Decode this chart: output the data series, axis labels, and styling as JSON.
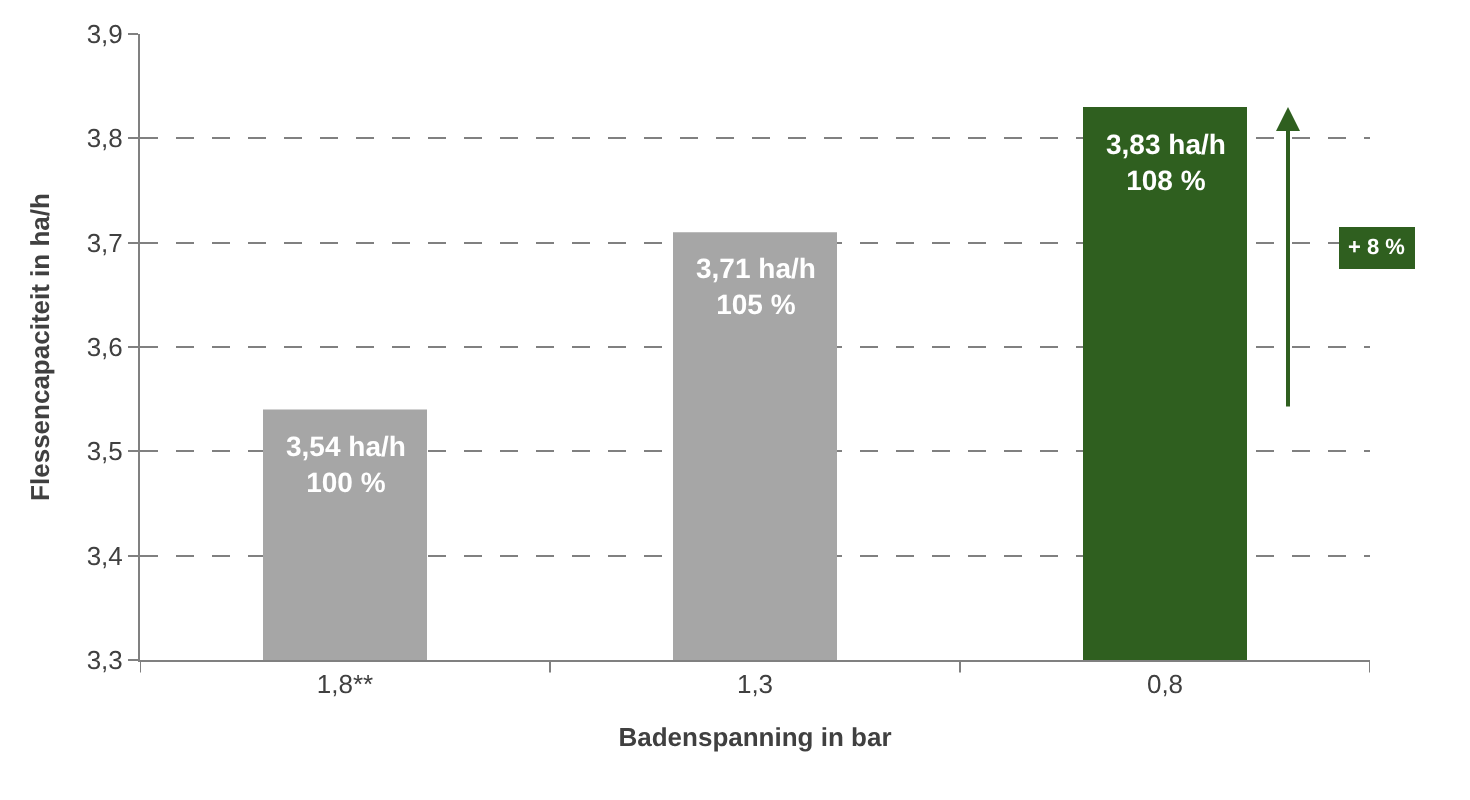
{
  "chart_data": {
    "type": "bar",
    "xlabel": "Badenspanning in bar",
    "ylabel": "Flessencapaciteit in ha/h",
    "categories": [
      "1,8**",
      "1,3",
      "0,8"
    ],
    "values": [
      3.54,
      3.71,
      3.83
    ],
    "colors": [
      "#a6a6a6",
      "#a6a6a6",
      "#2f5f1f"
    ],
    "value_labels": [
      "3,54 ha/h\n100 %",
      "3,71 ha/h\n105 %",
      "3,83 ha/h\n108 %"
    ],
    "ylim": [
      3.3,
      3.9
    ],
    "yticks": [
      {
        "value": 3.3,
        "label": "3,3"
      },
      {
        "value": 3.4,
        "label": "3,4"
      },
      {
        "value": 3.5,
        "label": "3,5"
      },
      {
        "value": 3.6,
        "label": "3,6"
      },
      {
        "value": 3.7,
        "label": "3,7"
      },
      {
        "value": 3.8,
        "label": "3,8"
      },
      {
        "value": 3.9,
        "label": "3,9"
      }
    ],
    "grid": "y",
    "annotations": [
      "+ 8 %"
    ]
  }
}
